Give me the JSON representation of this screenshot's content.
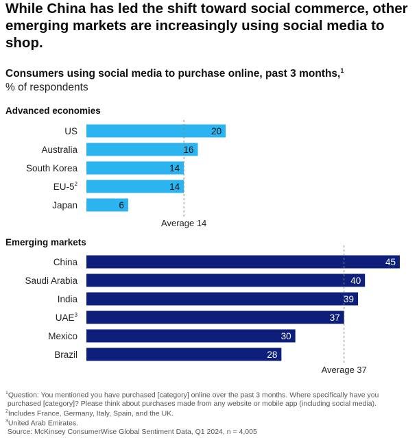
{
  "headline": "While China has led the shift toward social commerce, other emerging markets are increasingly using social media to shop.",
  "chart_data": {
    "type": "bar",
    "orientation": "horizontal",
    "title": "Consumers using social media to purchase online, past 3 months,",
    "title_footnote": "1",
    "unit": "% of respondents",
    "colors": {
      "advanced": "#2bb4f0",
      "emerging": "#0d1f7a",
      "average_line": "#888888"
    },
    "panels": [
      {
        "name": "Advanced economies",
        "categories": [
          "US",
          "Australia",
          "South Korea",
          "EU-5",
          "Japan"
        ],
        "footnote_marks": [
          "",
          "",
          "",
          "2",
          ""
        ],
        "values": [
          20,
          16,
          14,
          14,
          6
        ],
        "average": 14,
        "average_label": "Average 14"
      },
      {
        "name": "Emerging markets",
        "categories": [
          "China",
          "Saudi Arabia",
          "India",
          "UAE",
          "Mexico",
          "Brazil"
        ],
        "footnote_marks": [
          "",
          "",
          "",
          "3",
          "",
          ""
        ],
        "values": [
          45,
          40,
          39,
          37,
          30,
          28
        ],
        "average": 37,
        "average_label": "Average 37"
      }
    ]
  },
  "footnotes": {
    "note1_line1": "Question: You mentioned you have purchased [category] online over the past 3 months. Where specifically have you",
    "note1_line2": "purchased [category]? Please think about purchases made from any website or mobile app (including social media).",
    "note2": "Includes France, Germany, Italy, Spain, and the UK.",
    "note3": "United Arab Emirates.",
    "source": "Source: McKinsey ConsumerWise Global Sentiment Data, Q1 2024, n = 4,005"
  }
}
